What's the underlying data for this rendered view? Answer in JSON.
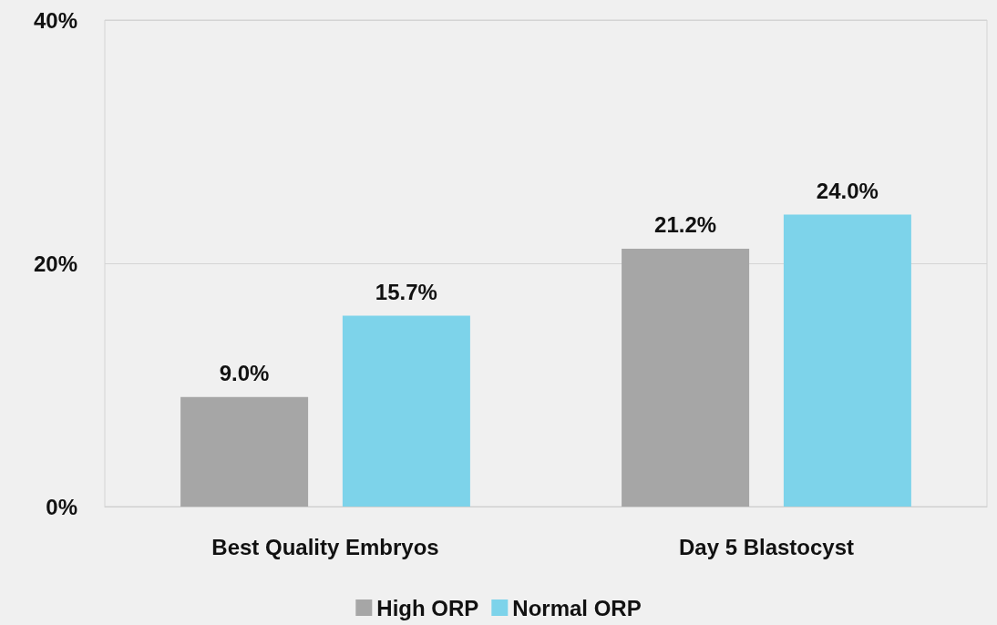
{
  "chart_data": {
    "type": "bar",
    "categories": [
      "Best Quality Embryos",
      "Day 5 Blastocyst"
    ],
    "series": [
      {
        "name": "High ORP",
        "color": "#a6a6a6",
        "values": [
          9.0,
          21.2
        ],
        "value_labels": [
          "9.0%",
          "21.2%"
        ]
      },
      {
        "name": "Normal ORP",
        "color": "#7dd3ea",
        "values": [
          15.7,
          24.0
        ],
        "value_labels": [
          "15.7%",
          "24.0%"
        ]
      }
    ],
    "ylim": [
      0,
      40
    ],
    "yticks": [
      {
        "value": 0,
        "label": "0%"
      },
      {
        "value": 20,
        "label": "20%"
      },
      {
        "value": 40,
        "label": "40%"
      }
    ],
    "grid": "y",
    "legend": "bottom"
  }
}
